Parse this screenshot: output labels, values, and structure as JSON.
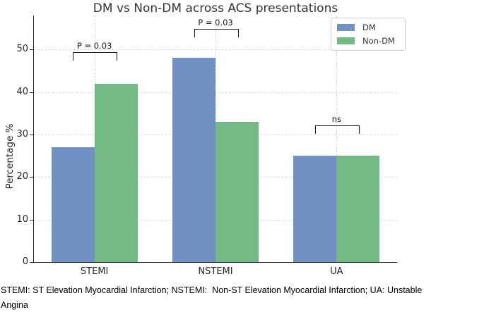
{
  "chart_data": {
    "type": "bar",
    "title": "DM vs Non-DM across ACS presentations",
    "ylabel": "Percentage %",
    "xlabel": "",
    "categories": [
      "STEMI",
      "NSTEMI",
      "UA"
    ],
    "series": [
      {
        "name": "DM",
        "color": "#7191C4",
        "values": [
          27,
          48,
          25
        ]
      },
      {
        "name": "Non-DM",
        "color": "#74B985",
        "values": [
          42,
          33,
          25
        ]
      }
    ],
    "ylim": [
      0,
      58
    ],
    "yticks": [
      0,
      10,
      20,
      30,
      40,
      50
    ],
    "grid": {
      "horizontal": true,
      "vertical": true,
      "style": "dashed",
      "color": "#d9d9d9"
    },
    "legend": {
      "position": "upper-right",
      "entries": [
        "DM",
        "Non-DM"
      ]
    },
    "annotations": [
      {
        "category": "STEMI",
        "label": "P = 0.03",
        "y": 49.4
      },
      {
        "category": "NSTEMI",
        "label": "P = 0.03",
        "y": 54.8
      },
      {
        "category": "UA",
        "label": "ns",
        "y": 32.2
      }
    ],
    "colors": {
      "spine": "#262626",
      "tick_label": "#262626",
      "title": "#333333",
      "annotation": "#1a1a1a",
      "grid": "#d9d9d9",
      "legend_border": "#cccccc",
      "background": "#ffffff"
    }
  },
  "footnote": {
    "text": "STEMI: ST Elevation Myocardial Infarction; NSTEMI:  Non-ST Elevation Myocardial Infarction; UA: Unstable\nAngina"
  }
}
